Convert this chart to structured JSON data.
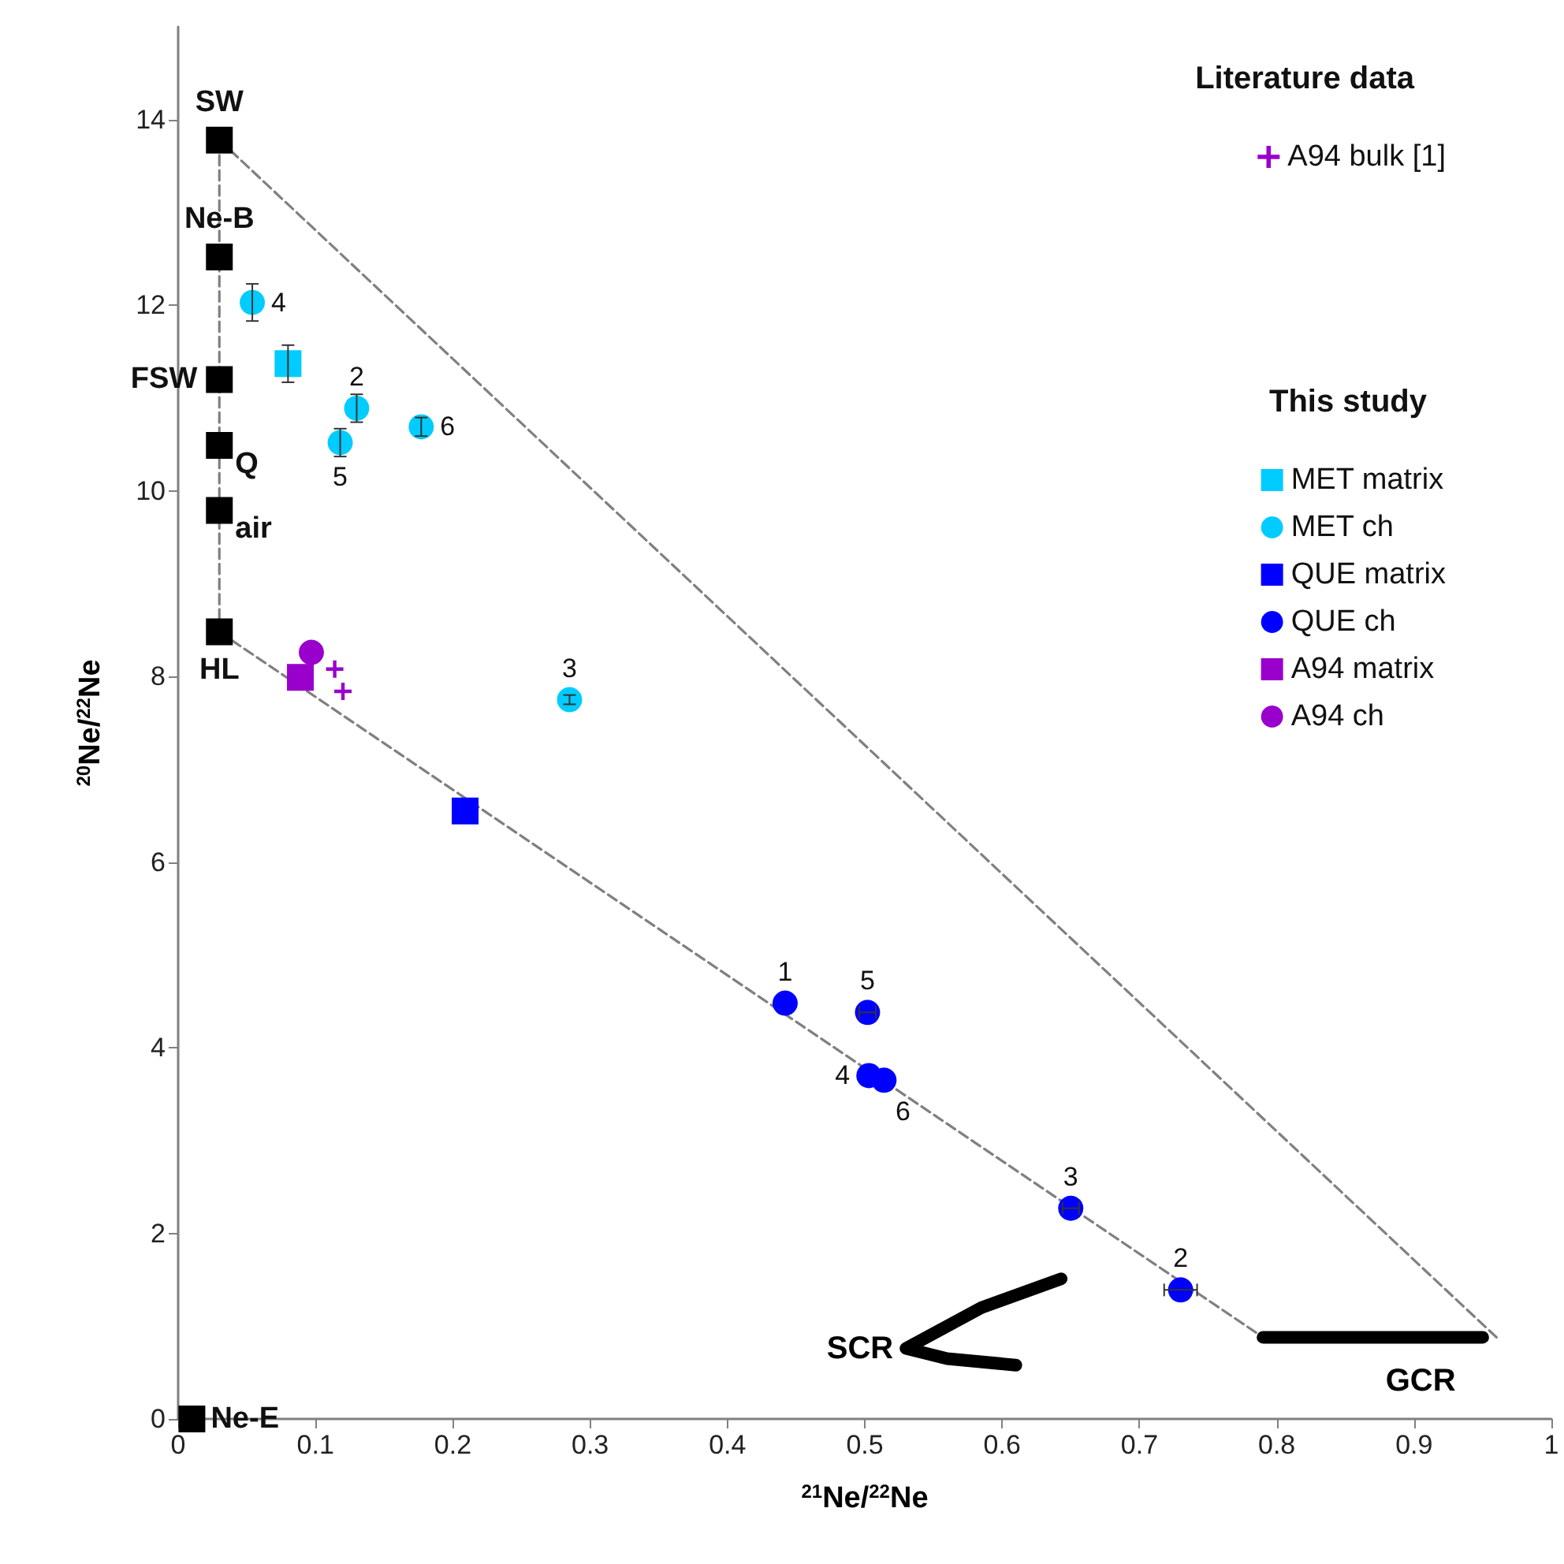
{
  "chart_data": {
    "type": "scatter",
    "xlabel": "$^{21}$Ne/$^{22}$Ne",
    "ylabel": "$^{20}$Ne/$^{22}$Ne",
    "annotations": [
      "Literature data",
      "This study",
      {
        "text": "4",
        "x": 0.054,
        "y": 12.03
      },
      {
        "text": "2",
        "x": 0.13,
        "y": 10.89
      },
      {
        "text": "5",
        "x": 0.118,
        "y": 10.52
      },
      {
        "text": "6",
        "x": 0.177,
        "y": 10.69
      },
      {
        "text": "3",
        "x": 0.285,
        "y": 7.75
      },
      {
        "text": "1",
        "x": 0.442,
        "y": 4.48
      },
      {
        "text": "5",
        "x": 0.502,
        "y": 4.38
      },
      {
        "text": "4",
        "x": 0.503,
        "y": 3.7
      },
      {
        "text": "6",
        "x": 0.514,
        "y": 3.65
      },
      {
        "text": "3",
        "x": 0.65,
        "y": 2.27
      },
      {
        "text": "2",
        "x": 0.73,
        "y": 1.39
      },
      {
        "text": "SW",
        "x": 0.03,
        "y": 13.78
      },
      {
        "text": "Ne-B",
        "x": 0.03,
        "y": 12.52
      },
      {
        "text": "FSW",
        "x": 0.03,
        "y": 11.2
      },
      {
        "text": "Q",
        "x": 0.03,
        "y": 10.49
      },
      {
        "text": "air",
        "x": 0.03,
        "y": 9.79
      },
      {
        "text": "HL",
        "x": 0.03,
        "y": 8.48
      },
      {
        "text": "Ne-E",
        "x": 0.01,
        "y": 0
      }
    ],
    "xlim": [
      0,
      1
    ],
    "xticks": [
      0,
      0.1,
      0.2,
      0.3,
      0.4,
      0.5,
      0.6,
      0.7,
      0.8,
      0.9,
      1
    ],
    "ylim": [
      0,
      15
    ],
    "yticks": [
      0,
      2,
      4,
      6,
      8,
      10,
      12,
      14
    ],
    "grid": false,
    "legend": "top right",
    "series": [
      {
        "name": "A94 bulk [1]",
        "color": "#9900cc",
        "marker": "cross",
        "x": [
          0.114,
          0.12
        ],
        "values": [
          8.08,
          7.84
        ]
      },
      {
        "name": "MET matrix",
        "color": "#00ccff",
        "marker": "square",
        "x": [
          0.08
        ],
        "values": [
          11.37
        ],
        "errors": [
          0.2
        ]
      },
      {
        "name": "MET ch",
        "color": "#00ccff",
        "marker": "circle",
        "x": [
          0.054,
          0.13,
          0.118,
          0.177,
          0.285
        ],
        "values": [
          12.03,
          10.89,
          10.52,
          10.69,
          7.75
        ],
        "errors": [
          0.2,
          0.15,
          0.15,
          0.1,
          0.05
        ]
      },
      {
        "name": "QUE matrix",
        "color": "#0000ff",
        "marker": "square",
        "x": [
          0.209
        ],
        "values": [
          6.55
        ]
      },
      {
        "name": "QUE ch",
        "color": "#0000ff",
        "marker": "circle",
        "x": [
          0.442,
          0.502,
          0.503,
          0.514,
          0.65,
          0.73
        ],
        "values": [
          4.48,
          4.38,
          3.7,
          3.65,
          2.27,
          1.39
        ],
        "xerrors": [
          null,
          0.006,
          null,
          null,
          0.006,
          0.012
        ]
      },
      {
        "name": "A94 matrix",
        "color": "#9900cc",
        "marker": "square",
        "x": [
          0.089
        ],
        "values": [
          7.99
        ]
      },
      {
        "name": "A94 ch",
        "color": "#9900cc",
        "marker": "circle",
        "x": [
          0.097
        ],
        "values": [
          8.26
        ]
      },
      {
        "color": "#000000",
        "marker": "square",
        "x": [
          0.03,
          0.03,
          0.03,
          0.03,
          0.03,
          0.03,
          0.01
        ],
        "values": [
          13.78,
          12.52,
          11.2,
          10.49,
          9.79,
          8.48,
          0
        ]
      },
      {
        "type": "line",
        "color": "#808080",
        "line_style": "dashed",
        "marker": "none",
        "x": [
          0.03,
          0.03
        ],
        "values": [
          13.78,
          8.48
        ]
      },
      {
        "type": "line",
        "color": "#808080",
        "line_style": "dashed",
        "marker": "none",
        "x": [
          0.03,
          0.96
        ],
        "values": [
          13.78,
          0.88
        ]
      },
      {
        "type": "line",
        "color": "#808080",
        "line_style": "dashed",
        "marker": "none",
        "x": [
          0.03,
          0.79
        ],
        "values": [
          8.48,
          0.88
        ]
      },
      {
        "type": "line",
        "name": "SCR",
        "color": "#000000",
        "line_style": "solid",
        "marker": "none",
        "x": [
          0.643,
          0.585,
          0.53,
          0.56,
          0.61
        ],
        "values": [
          1.51,
          1.2,
          0.76,
          0.65,
          0.58
        ]
      },
      {
        "type": "line",
        "name": "GCR",
        "color": "#000000",
        "line_style": "solid",
        "marker": "none",
        "x": [
          0.79,
          0.95
        ],
        "values": [
          0.88,
          0.88
        ]
      }
    ]
  }
}
